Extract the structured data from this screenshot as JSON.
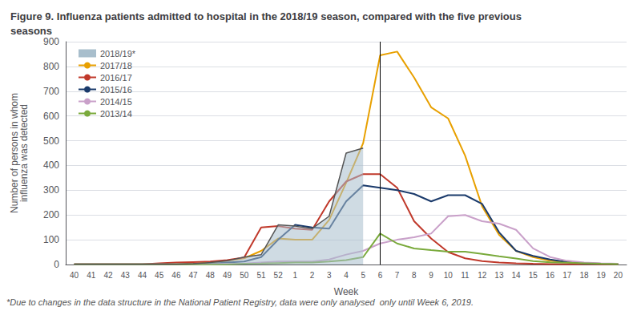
{
  "chart_data": {
    "type": "line",
    "title": "Figure 9. Influenza patients admitted to hospital in the 2018/19 season, compared with the five previous\nseasons",
    "footnote": "*Due to changes in the data structure in the National Patient Registry, data were only analysed  only until Week 6, 2019.",
    "xlabel": "Week",
    "ylabel": "Number of persons in whom\ninfluenza was detected",
    "categories": [
      "40",
      "41",
      "42",
      "43",
      "44",
      "45",
      "46",
      "47",
      "48",
      "49",
      "50",
      "51",
      "52",
      "1",
      "2",
      "3",
      "4",
      "5",
      "6",
      "7",
      "8",
      "9",
      "10",
      "11",
      "12",
      "13",
      "14",
      "15",
      "16",
      "17",
      "18",
      "19",
      "20"
    ],
    "ylim": [
      0,
      900
    ],
    "yticks": [
      0,
      100,
      200,
      300,
      400,
      500,
      600,
      700,
      800,
      900
    ],
    "grid": true,
    "legend": "upper left",
    "vlines": [
      {
        "x": "6",
        "color": "#000000"
      }
    ],
    "series": [
      {
        "name": "2018/19*",
        "type": "area",
        "color": "#a8becc",
        "line_color": "#555555",
        "values": [
          1,
          1,
          1,
          1,
          1,
          1,
          1,
          3,
          8,
          15,
          30,
          40,
          160,
          155,
          145,
          195,
          450,
          470,
          null,
          null,
          null,
          null,
          null,
          null,
          null,
          null,
          null,
          null,
          null,
          null,
          null,
          null,
          null
        ]
      },
      {
        "name": "2017/18",
        "type": "line",
        "color": "#e8a000",
        "values": [
          1,
          1,
          1,
          1,
          1,
          1,
          1,
          3,
          8,
          15,
          25,
          55,
          105,
          100,
          100,
          180,
          330,
          490,
          845,
          860,
          755,
          635,
          590,
          440,
          235,
          120,
          55,
          30,
          15,
          10,
          5,
          3,
          2
        ]
      },
      {
        "name": "2016/17",
        "type": "line",
        "color": "#c0392b",
        "values": [
          1,
          1,
          1,
          1,
          1,
          5,
          8,
          10,
          12,
          18,
          28,
          150,
          155,
          145,
          140,
          255,
          335,
          365,
          365,
          310,
          175,
          105,
          50,
          25,
          14,
          8,
          5,
          3,
          2,
          2,
          2,
          2,
          2
        ]
      },
      {
        "name": "2015/16",
        "type": "line",
        "color": "#1a3a6b",
        "values": [
          1,
          1,
          1,
          1,
          1,
          1,
          1,
          1,
          3,
          8,
          12,
          30,
          100,
          160,
          150,
          145,
          255,
          320,
          310,
          300,
          285,
          255,
          280,
          280,
          245,
          130,
          55,
          35,
          20,
          10,
          5,
          3,
          2
        ]
      },
      {
        "name": "2014/15",
        "type": "line",
        "color": "#c9a0c9",
        "values": [
          1,
          1,
          1,
          1,
          1,
          1,
          1,
          1,
          1,
          3,
          4,
          8,
          12,
          12,
          12,
          20,
          40,
          55,
          85,
          100,
          110,
          125,
          195,
          200,
          175,
          165,
          140,
          65,
          30,
          15,
          8,
          5,
          3
        ]
      },
      {
        "name": "2013/14",
        "type": "line",
        "color": "#7aaa3c",
        "values": [
          1,
          1,
          1,
          1,
          1,
          1,
          1,
          1,
          1,
          1,
          3,
          4,
          6,
          8,
          8,
          12,
          18,
          30,
          125,
          85,
          65,
          58,
          52,
          52,
          43,
          33,
          24,
          14,
          9,
          7,
          5,
          3,
          2
        ]
      }
    ]
  }
}
